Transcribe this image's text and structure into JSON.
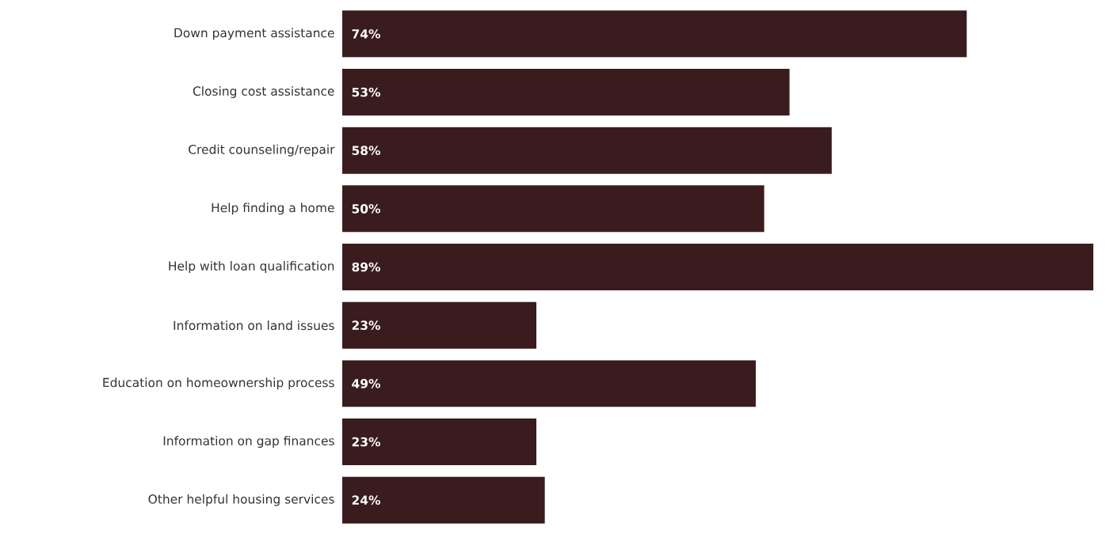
{
  "chart_data": {
    "type": "bar",
    "orientation": "horizontal",
    "categories": [
      "Down payment assistance",
      "Closing cost assistance",
      "Credit counseling/repair",
      "Help finding a home",
      "Help with loan qualification",
      "Information on land issues",
      "Education on homeownership process",
      "Information on gap finances",
      "Other helpful housing services"
    ],
    "values": [
      74,
      53,
      58,
      50,
      89,
      23,
      49,
      23,
      24
    ],
    "value_labels": [
      "74%",
      "53%",
      "58%",
      "50%",
      "89%",
      "23%",
      "49%",
      "23%",
      "24%"
    ],
    "color": "#3a1c1f"
  }
}
